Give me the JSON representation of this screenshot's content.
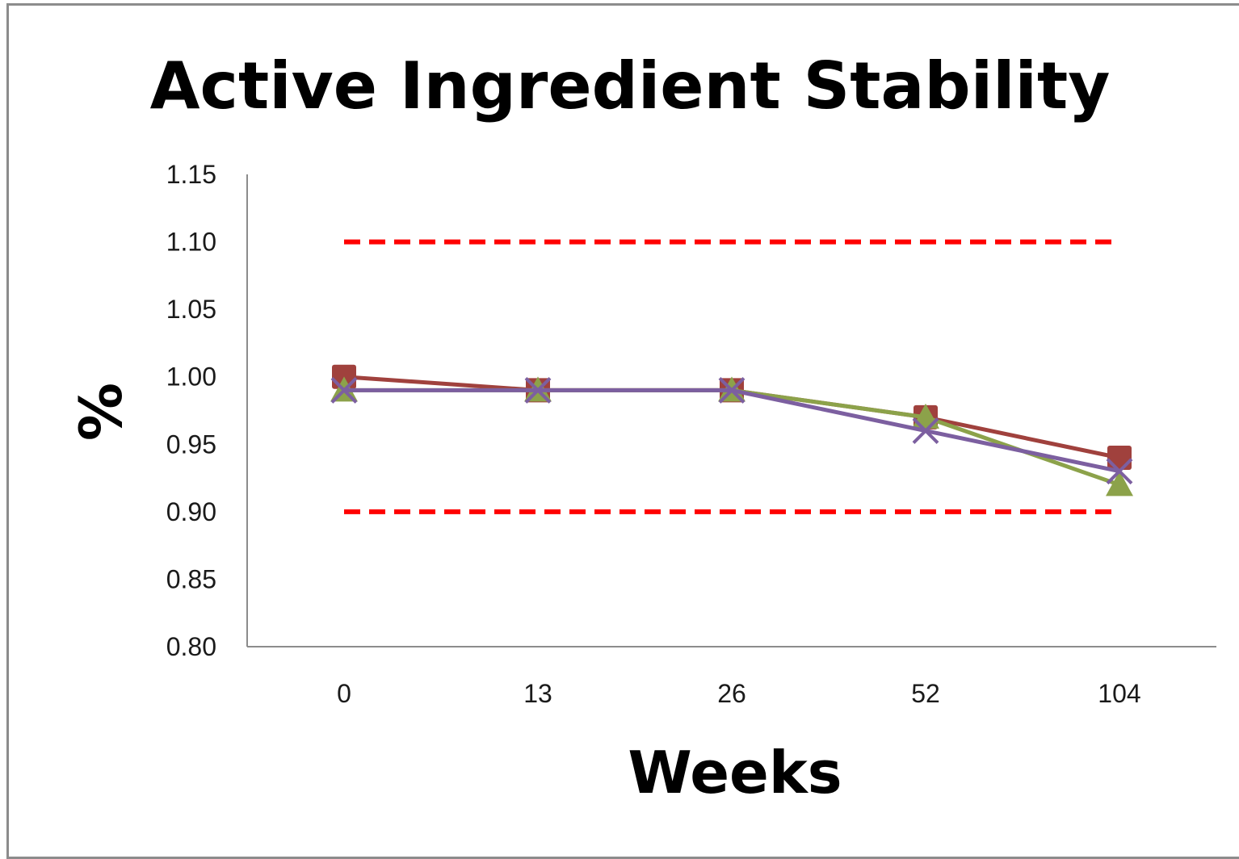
{
  "chart_data": {
    "type": "line",
    "title": "Active Ingredient Stability",
    "xlabel": "Weeks",
    "ylabel": "%",
    "categories": [
      "0",
      "13",
      "26",
      "52",
      "104"
    ],
    "ylim": [
      0.8,
      1.15
    ],
    "ytick_labels": [
      "0.80",
      "0.85",
      "0.90",
      "0.95",
      "1.00",
      "1.05",
      "1.10",
      "1.15"
    ],
    "grid": false,
    "legend": "none",
    "series": [
      {
        "values": [
          1.0,
          0.99,
          0.99,
          0.97,
          0.94
        ],
        "color": "#A0413D",
        "marker": "square"
      },
      {
        "values": [
          0.99,
          0.99,
          0.99,
          0.97,
          0.92
        ],
        "color": "#8CA24A",
        "marker": "triangle"
      },
      {
        "values": [
          0.99,
          0.99,
          0.99,
          0.96,
          0.93
        ],
        "color": "#7C5FA0",
        "marker": "x"
      }
    ],
    "limit_lines": [
      {
        "value": 1.1,
        "color": "#FF0000",
        "style": "dashed"
      },
      {
        "value": 0.9,
        "color": "#FF0000",
        "style": "dashed"
      }
    ]
  }
}
